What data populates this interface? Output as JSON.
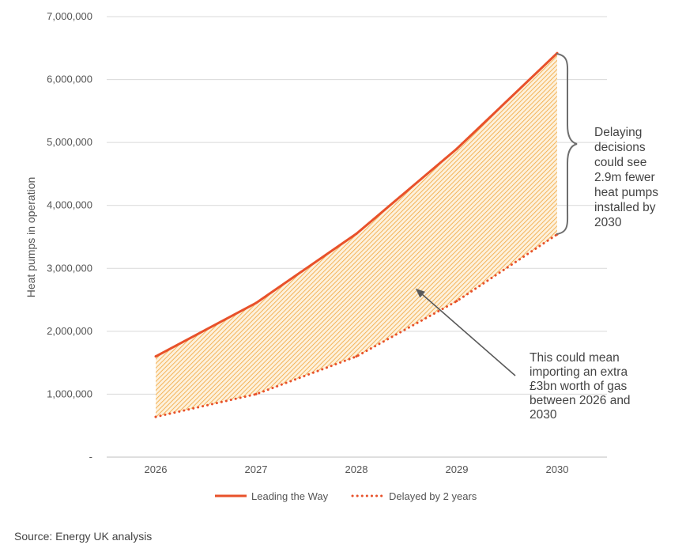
{
  "chart_data": {
    "type": "line",
    "title": "",
    "xlabel": "",
    "ylabel": "Heat pumps in operation",
    "categories": [
      "2026",
      "2027",
      "2028",
      "2029",
      "2030"
    ],
    "ylim": [
      0,
      7000000
    ],
    "y_ticks": [
      0,
      1000000,
      2000000,
      3000000,
      4000000,
      5000000,
      6000000,
      7000000
    ],
    "y_tick_labels": [
      "-",
      "1,000,000",
      "2,000,000",
      "3,000,000",
      "4,000,000",
      "5,000,000",
      "6,000,000",
      "7,000,000"
    ],
    "grid": true,
    "series": [
      {
        "name": "Leading the Way",
        "style": "solid",
        "color": "#e8512a",
        "values": [
          1600000,
          2450000,
          3550000,
          4900000,
          6420000
        ]
      },
      {
        "name": "Delayed by 2 years",
        "style": "dotted",
        "color": "#e8512a",
        "values": [
          640000,
          1000000,
          1600000,
          2480000,
          3540000
        ]
      }
    ],
    "fill_between": {
      "color": "#f3a93b",
      "pattern": "diagonal-hatch"
    },
    "annotations": [
      {
        "id": "gap",
        "lines": [
          "Delaying",
          "decisions",
          "could see",
          "2.9m fewer",
          "heat pumps",
          "installed by",
          "2030"
        ]
      },
      {
        "id": "gas",
        "lines": [
          "This could mean",
          "importing an extra",
          "£3bn worth of gas",
          "between 2026 and",
          "2030"
        ]
      }
    ],
    "legend_position": "bottom"
  },
  "source": "Source: Energy UK analysis",
  "colors": {
    "grid": "#d9d9d9",
    "axis": "#bfbfbf",
    "brace": "#6e6e6e",
    "arrow": "#595959"
  }
}
